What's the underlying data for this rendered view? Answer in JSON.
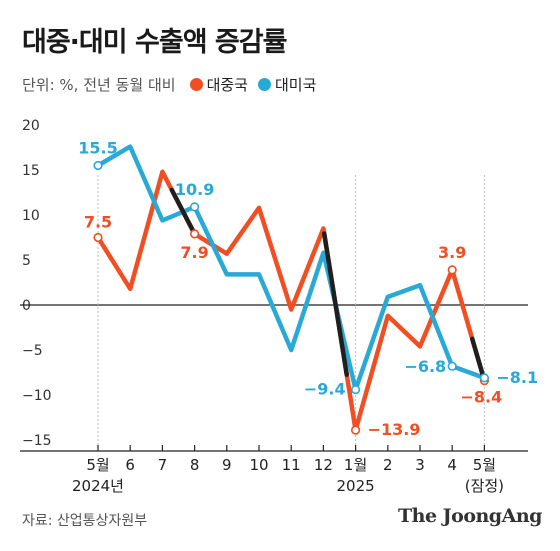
{
  "title": "대중·대미 수출액 증감률",
  "unit": "단위: %, 전년 동월 대비",
  "source": "자료: 산업통상자원부",
  "brand": "The JoongAng",
  "colors": {
    "china": "#f04e23",
    "usa": "#29a9d6",
    "overlap": "#1f1f1f"
  },
  "chart_data": {
    "type": "line",
    "categories": [
      "5월",
      "6",
      "7",
      "8",
      "9",
      "10",
      "11",
      "12",
      "1월",
      "2",
      "3",
      "4",
      "5월"
    ],
    "category_sublabels": [
      "2024년",
      "",
      "",
      "",
      "",
      "",
      "",
      "",
      "2025",
      "",
      "",
      "",
      "(잠정)"
    ],
    "ylim": [
      -15,
      20
    ],
    "yticks": [
      20,
      15,
      10,
      5,
      0,
      -5,
      -10,
      -15
    ],
    "series": [
      {
        "name": "대중국",
        "color": "#f04e23",
        "values": [
          7.5,
          1.8,
          14.8,
          7.9,
          5.7,
          10.8,
          -0.5,
          8.5,
          -13.9,
          -1.2,
          -4.6,
          3.9,
          -8.4
        ]
      },
      {
        "name": "대미국",
        "color": "#29a9d6",
        "values": [
          15.5,
          17.6,
          9.4,
          10.9,
          3.4,
          3.4,
          -5.0,
          5.8,
          -9.4,
          0.9,
          2.2,
          -6.8,
          -8.1
        ]
      }
    ],
    "annotations": [
      {
        "series": 0,
        "index": 0,
        "label": "7.5"
      },
      {
        "series": 0,
        "index": 3,
        "label": "7.9"
      },
      {
        "series": 0,
        "index": 8,
        "label": "−13.9"
      },
      {
        "series": 0,
        "index": 11,
        "label": "3.9"
      },
      {
        "series": 0,
        "index": 12,
        "label": "−8.4"
      },
      {
        "series": 1,
        "index": 0,
        "label": "15.5"
      },
      {
        "series": 1,
        "index": 3,
        "label": "10.9"
      },
      {
        "series": 1,
        "index": 8,
        "label": "−9.4"
      },
      {
        "series": 1,
        "index": 11,
        "label": "−6.8"
      },
      {
        "series": 1,
        "index": 12,
        "label": "−8.1"
      }
    ],
    "legend": "top-left",
    "grid": false
  }
}
